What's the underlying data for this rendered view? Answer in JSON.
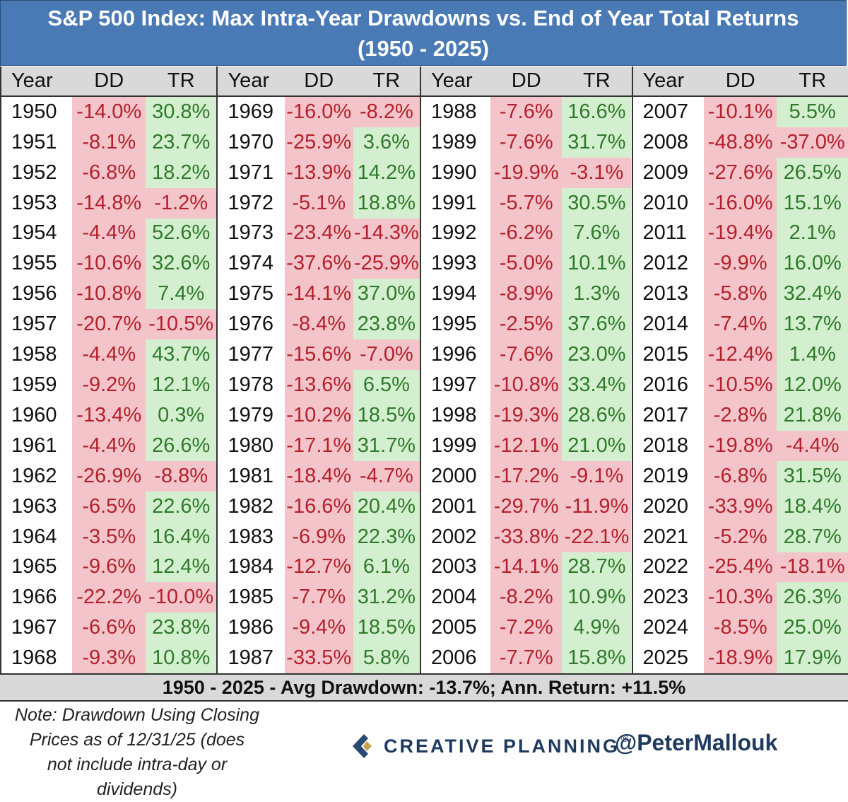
{
  "title": {
    "line1": "S&P 500 Index: Max Intra-Year Drawdowns vs. End of Year Total Returns",
    "line2": "(1950 - 2025)"
  },
  "headers": {
    "year": "Year",
    "dd": "DD",
    "tr": "TR"
  },
  "colors": {
    "negative_bg": "#f3c5cb",
    "negative_text": "#b4202a",
    "positive_bg": "#d4efcf",
    "positive_text": "#2e7a2a",
    "title_bg": "#4a7ab5"
  },
  "groups": [
    {
      "rows": [
        {
          "year": "1950",
          "dd": "-14.0%",
          "tr": "30.8%"
        },
        {
          "year": "1951",
          "dd": "-8.1%",
          "tr": "23.7%"
        },
        {
          "year": "1952",
          "dd": "-6.8%",
          "tr": "18.2%"
        },
        {
          "year": "1953",
          "dd": "-14.8%",
          "tr": "-1.2%"
        },
        {
          "year": "1954",
          "dd": "-4.4%",
          "tr": "52.6%"
        },
        {
          "year": "1955",
          "dd": "-10.6%",
          "tr": "32.6%"
        },
        {
          "year": "1956",
          "dd": "-10.8%",
          "tr": "7.4%"
        },
        {
          "year": "1957",
          "dd": "-20.7%",
          "tr": "-10.5%"
        },
        {
          "year": "1958",
          "dd": "-4.4%",
          "tr": "43.7%"
        },
        {
          "year": "1959",
          "dd": "-9.2%",
          "tr": "12.1%"
        },
        {
          "year": "1960",
          "dd": "-13.4%",
          "tr": "0.3%"
        },
        {
          "year": "1961",
          "dd": "-4.4%",
          "tr": "26.6%"
        },
        {
          "year": "1962",
          "dd": "-26.9%",
          "tr": "-8.8%"
        },
        {
          "year": "1963",
          "dd": "-6.5%",
          "tr": "22.6%"
        },
        {
          "year": "1964",
          "dd": "-3.5%",
          "tr": "16.4%"
        },
        {
          "year": "1965",
          "dd": "-9.6%",
          "tr": "12.4%"
        },
        {
          "year": "1966",
          "dd": "-22.2%",
          "tr": "-10.0%"
        },
        {
          "year": "1967",
          "dd": "-6.6%",
          "tr": "23.8%"
        },
        {
          "year": "1968",
          "dd": "-9.3%",
          "tr": "10.8%"
        }
      ]
    },
    {
      "rows": [
        {
          "year": "1969",
          "dd": "-16.0%",
          "tr": "-8.2%"
        },
        {
          "year": "1970",
          "dd": "-25.9%",
          "tr": "3.6%"
        },
        {
          "year": "1971",
          "dd": "-13.9%",
          "tr": "14.2%"
        },
        {
          "year": "1972",
          "dd": "-5.1%",
          "tr": "18.8%"
        },
        {
          "year": "1973",
          "dd": "-23.4%",
          "tr": "-14.3%"
        },
        {
          "year": "1974",
          "dd": "-37.6%",
          "tr": "-25.9%"
        },
        {
          "year": "1975",
          "dd": "-14.1%",
          "tr": "37.0%"
        },
        {
          "year": "1976",
          "dd": "-8.4%",
          "tr": "23.8%"
        },
        {
          "year": "1977",
          "dd": "-15.6%",
          "tr": "-7.0%"
        },
        {
          "year": "1978",
          "dd": "-13.6%",
          "tr": "6.5%"
        },
        {
          "year": "1979",
          "dd": "-10.2%",
          "tr": "18.5%"
        },
        {
          "year": "1980",
          "dd": "-17.1%",
          "tr": "31.7%"
        },
        {
          "year": "1981",
          "dd": "-18.4%",
          "tr": "-4.7%"
        },
        {
          "year": "1982",
          "dd": "-16.6%",
          "tr": "20.4%"
        },
        {
          "year": "1983",
          "dd": "-6.9%",
          "tr": "22.3%"
        },
        {
          "year": "1984",
          "dd": "-12.7%",
          "tr": "6.1%"
        },
        {
          "year": "1985",
          "dd": "-7.7%",
          "tr": "31.2%"
        },
        {
          "year": "1986",
          "dd": "-9.4%",
          "tr": "18.5%"
        },
        {
          "year": "1987",
          "dd": "-33.5%",
          "tr": "5.8%"
        }
      ]
    },
    {
      "rows": [
        {
          "year": "1988",
          "dd": "-7.6%",
          "tr": "16.6%"
        },
        {
          "year": "1989",
          "dd": "-7.6%",
          "tr": "31.7%"
        },
        {
          "year": "1990",
          "dd": "-19.9%",
          "tr": "-3.1%"
        },
        {
          "year": "1991",
          "dd": "-5.7%",
          "tr": "30.5%"
        },
        {
          "year": "1992",
          "dd": "-6.2%",
          "tr": "7.6%"
        },
        {
          "year": "1993",
          "dd": "-5.0%",
          "tr": "10.1%"
        },
        {
          "year": "1994",
          "dd": "-8.9%",
          "tr": "1.3%"
        },
        {
          "year": "1995",
          "dd": "-2.5%",
          "tr": "37.6%"
        },
        {
          "year": "1996",
          "dd": "-7.6%",
          "tr": "23.0%"
        },
        {
          "year": "1997",
          "dd": "-10.8%",
          "tr": "33.4%"
        },
        {
          "year": "1998",
          "dd": "-19.3%",
          "tr": "28.6%"
        },
        {
          "year": "1999",
          "dd": "-12.1%",
          "tr": "21.0%"
        },
        {
          "year": "2000",
          "dd": "-17.2%",
          "tr": "-9.1%"
        },
        {
          "year": "2001",
          "dd": "-29.7%",
          "tr": "-11.9%"
        },
        {
          "year": "2002",
          "dd": "-33.8%",
          "tr": "-22.1%"
        },
        {
          "year": "2003",
          "dd": "-14.1%",
          "tr": "28.7%"
        },
        {
          "year": "2004",
          "dd": "-8.2%",
          "tr": "10.9%"
        },
        {
          "year": "2005",
          "dd": "-7.2%",
          "tr": "4.9%"
        },
        {
          "year": "2006",
          "dd": "-7.7%",
          "tr": "15.8%"
        }
      ]
    },
    {
      "rows": [
        {
          "year": "2007",
          "dd": "-10.1%",
          "tr": "5.5%"
        },
        {
          "year": "2008",
          "dd": "-48.8%",
          "tr": "-37.0%"
        },
        {
          "year": "2009",
          "dd": "-27.6%",
          "tr": "26.5%"
        },
        {
          "year": "2010",
          "dd": "-16.0%",
          "tr": "15.1%"
        },
        {
          "year": "2011",
          "dd": "-19.4%",
          "tr": "2.1%"
        },
        {
          "year": "2012",
          "dd": "-9.9%",
          "tr": "16.0%"
        },
        {
          "year": "2013",
          "dd": "-5.8%",
          "tr": "32.4%"
        },
        {
          "year": "2014",
          "dd": "-7.4%",
          "tr": "13.7%"
        },
        {
          "year": "2015",
          "dd": "-12.4%",
          "tr": "1.4%"
        },
        {
          "year": "2016",
          "dd": "-10.5%",
          "tr": "12.0%"
        },
        {
          "year": "2017",
          "dd": "-2.8%",
          "tr": "21.8%"
        },
        {
          "year": "2018",
          "dd": "-19.8%",
          "tr": "-4.4%"
        },
        {
          "year": "2019",
          "dd": "-6.8%",
          "tr": "31.5%"
        },
        {
          "year": "2020",
          "dd": "-33.9%",
          "tr": "18.4%"
        },
        {
          "year": "2021",
          "dd": "-5.2%",
          "tr": "28.7%"
        },
        {
          "year": "2022",
          "dd": "-25.4%",
          "tr": "-18.1%"
        },
        {
          "year": "2023",
          "dd": "-10.3%",
          "tr": "26.3%"
        },
        {
          "year": "2024",
          "dd": "-8.5%",
          "tr": "25.0%"
        },
        {
          "year": "2025",
          "dd": "-18.9%",
          "tr": "17.9%"
        }
      ]
    }
  ],
  "summary": "1950 - 2025 - Avg Drawdown: -13.7%; Ann. Return: +11.5%",
  "note": {
    "lines": [
      "Note: Drawdown Using Closing",
      "Prices as of 12/31/25 (does",
      "not include intra-day or",
      "dividends)"
    ]
  },
  "brand": {
    "name": "CREATIVE PLANNING",
    "reg": "®",
    "logo_icon": "creative-planning-logo-icon"
  },
  "handle": "@PeterMallouk"
}
